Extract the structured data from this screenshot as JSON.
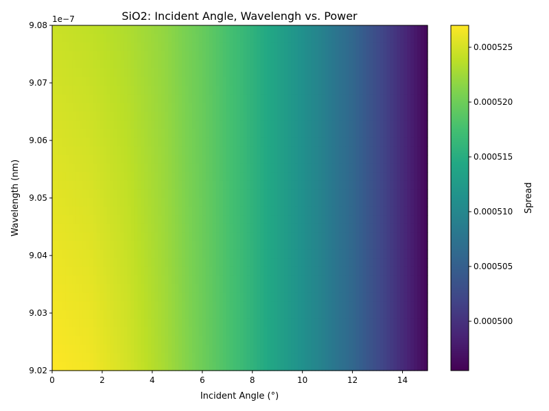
{
  "chart_data": {
    "type": "heatmap",
    "title": "SiO2: Incident Angle, Wavelengh vs. Power",
    "xlabel": "Incident Angle (°)",
    "ylabel": "Wavelength (nm)",
    "y_offset_label": "1e−7",
    "xlim": [
      0,
      15
    ],
    "ylim": [
      9.02,
      9.08
    ],
    "x_ticks": [
      0,
      2,
      4,
      6,
      8,
      10,
      12,
      14
    ],
    "x_tick_labels": [
      "0",
      "2",
      "4",
      "6",
      "8",
      "10",
      "12",
      "14"
    ],
    "y_ticks": [
      9.02,
      9.03,
      9.04,
      9.05,
      9.06,
      9.07,
      9.08
    ],
    "y_tick_labels": [
      "9.02",
      "9.03",
      "9.04",
      "9.05",
      "9.06",
      "9.07",
      "9.08"
    ],
    "grid": false,
    "colormap": "viridis",
    "colorbar": {
      "label": "Spread",
      "range": [
        0.0004955,
        0.000527
      ],
      "ticks": [
        0.0005,
        0.000505,
        0.00051,
        0.000515,
        0.00052,
        0.000525
      ],
      "tick_labels": [
        "0.000500",
        "0.000505",
        "0.000510",
        "0.000515",
        "0.000520",
        "0.000525"
      ]
    },
    "x": [
      0,
      1.5,
      3,
      4.5,
      6,
      7.5,
      9,
      10.5,
      12,
      13.5,
      15
    ],
    "y": [
      9.02,
      9.08
    ],
    "z": [
      [
        0.000527,
        0.0005265,
        0.000525,
        0.0005228,
        0.00052,
        0.000517,
        0.0005135,
        0.00051,
        0.000506,
        0.000501,
        0.000496
      ],
      [
        0.0005245,
        0.000524,
        0.0005232,
        0.0005218,
        0.0005196,
        0.0005168,
        0.0005135,
        0.00051,
        0.000506,
        0.000501,
        0.000496
      ]
    ]
  }
}
